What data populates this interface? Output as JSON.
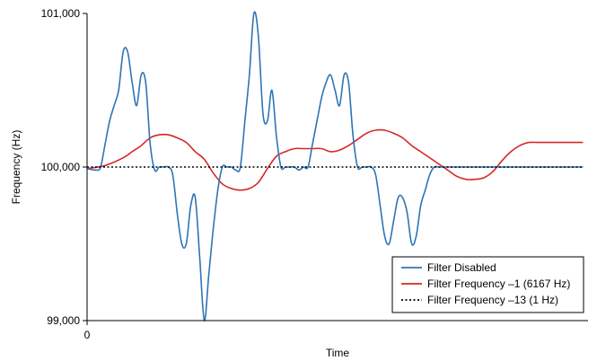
{
  "chart_data": {
    "type": "line",
    "title": "",
    "xlabel": "Time",
    "ylabel": "Frequency (Hz)",
    "ylim": [
      99000,
      101000
    ],
    "xlim": [
      0,
      100
    ],
    "x_ticks": [
      {
        "value": 0,
        "label": "0"
      }
    ],
    "y_ticks": [
      {
        "value": 99000,
        "label": "99,000"
      },
      {
        "value": 100000,
        "label": "100,000"
      },
      {
        "value": 101000,
        "label": "101,000"
      }
    ],
    "grid": false,
    "legend_position": "bottom-right",
    "series": [
      {
        "name": "Filter Disabled",
        "color": "#2e74b5",
        "dash": "solid",
        "x": [
          0,
          1.8,
          2.7,
          3.6,
          4.5,
          5.4,
          6.3,
          7.2,
          8.1,
          9,
          9.9,
          10.8,
          11.7,
          12.6,
          13.5,
          14.4,
          15.3,
          16.2,
          17.1,
          18,
          18.9,
          19.8,
          20.7,
          21.6,
          22.5,
          23.4,
          24.3,
          25.2,
          26.1,
          27,
          27.9,
          28.8,
          29.7,
          30.6,
          31.5,
          32.4,
          33.3,
          34.2,
          35.1,
          36,
          36.9,
          37.8,
          38.7,
          39.6,
          40.5,
          41.4,
          42.3,
          43.2,
          44.1,
          45,
          45.9,
          46.8,
          47.7,
          48.6,
          49.5,
          50.4,
          51.3,
          52.2,
          53.1,
          54,
          54.9,
          55.8,
          56.7,
          57.6,
          58.5,
          59.4,
          60.3,
          61.2,
          62.1,
          63,
          63.9,
          64.8,
          65.7,
          66.6,
          67.5,
          68.4,
          69.3,
          70.2,
          71.1,
          72,
          72.9,
          73.8,
          74.7,
          75.6,
          76.5,
          77.4,
          78.3,
          79.2,
          80.1,
          81,
          81.9,
          82.8,
          83.7,
          84.6,
          85.5,
          86.4,
          87.3,
          88.2,
          89.1,
          90,
          90.9,
          91.8,
          92.7,
          93.6,
          94.5,
          95.4,
          96.3,
          97.2,
          98.1,
          99
        ],
        "y": [
          99990,
          99980,
          100000,
          100150,
          100300,
          100400,
          100500,
          100750,
          100750,
          100550,
          100400,
          100600,
          100550,
          100150,
          99980,
          100000,
          100000,
          100000,
          99950,
          99700,
          99500,
          99500,
          99750,
          99800,
          99400,
          99000,
          99300,
          99600,
          99850,
          100000,
          100000,
          100000,
          99980,
          100000,
          100300,
          100600,
          101000,
          100850,
          100350,
          100300,
          100500,
          100200,
          100000,
          100000,
          100000,
          100000,
          99980,
          100000,
          100000,
          100150,
          100300,
          100450,
          100550,
          100600,
          100500,
          100400,
          100600,
          100550,
          100200,
          100000,
          100000,
          100000,
          100000,
          99950,
          99750,
          99550,
          99500,
          99650,
          99800,
          99800,
          99700,
          99500,
          99550,
          99750,
          99850,
          99950,
          100000,
          100000,
          100000,
          100000,
          100000,
          100000,
          100000,
          100000,
          100000,
          100000,
          100000,
          100000,
          100000,
          100000,
          100000,
          100000,
          100000,
          100000,
          100000,
          100000,
          100000,
          100000,
          100000,
          100000,
          100000,
          100000,
          100000,
          100000,
          100000,
          100000,
          100000,
          100000,
          100000,
          100000
        ]
      },
      {
        "name": "Filter Frequency –1 (6167 Hz)",
        "color": "#d62728",
        "dash": "solid",
        "x": [
          0,
          3.6,
          7.2,
          9,
          10.8,
          12.6,
          14.4,
          16.2,
          18,
          19.8,
          21.6,
          23.4,
          25.2,
          27,
          28.8,
          30.6,
          32.4,
          34.2,
          36,
          37.8,
          39.6,
          41.4,
          43.2,
          45,
          46.8,
          48.6,
          50.4,
          52.2,
          54,
          55.8,
          57.6,
          59.4,
          61.2,
          63,
          64.8,
          66.6,
          68.4,
          70.2,
          72,
          73.8,
          75.6,
          77.4,
          79.2,
          81,
          82.8,
          84.6,
          86.4,
          88.2,
          90,
          91.8,
          93.6,
          95.4,
          97.2,
          99
        ],
        "y": [
          99990,
          100010,
          100060,
          100100,
          100140,
          100190,
          100210,
          100210,
          100190,
          100160,
          100100,
          100050,
          99960,
          99890,
          99860,
          99850,
          99860,
          99900,
          99990,
          100070,
          100100,
          100120,
          100120,
          100120,
          100120,
          100100,
          100110,
          100140,
          100180,
          100220,
          100240,
          100240,
          100220,
          100190,
          100140,
          100100,
          100060,
          100020,
          99980,
          99940,
          99920,
          99920,
          99930,
          99970,
          100040,
          100100,
          100140,
          100160,
          100160,
          100160,
          100160,
          100160,
          100160,
          100160
        ]
      },
      {
        "name": "Filter Frequency –13 (1 Hz)",
        "color": "#000000",
        "dash": "dotted",
        "x": [
          0,
          99
        ],
        "y": [
          100000,
          100000
        ]
      }
    ]
  }
}
